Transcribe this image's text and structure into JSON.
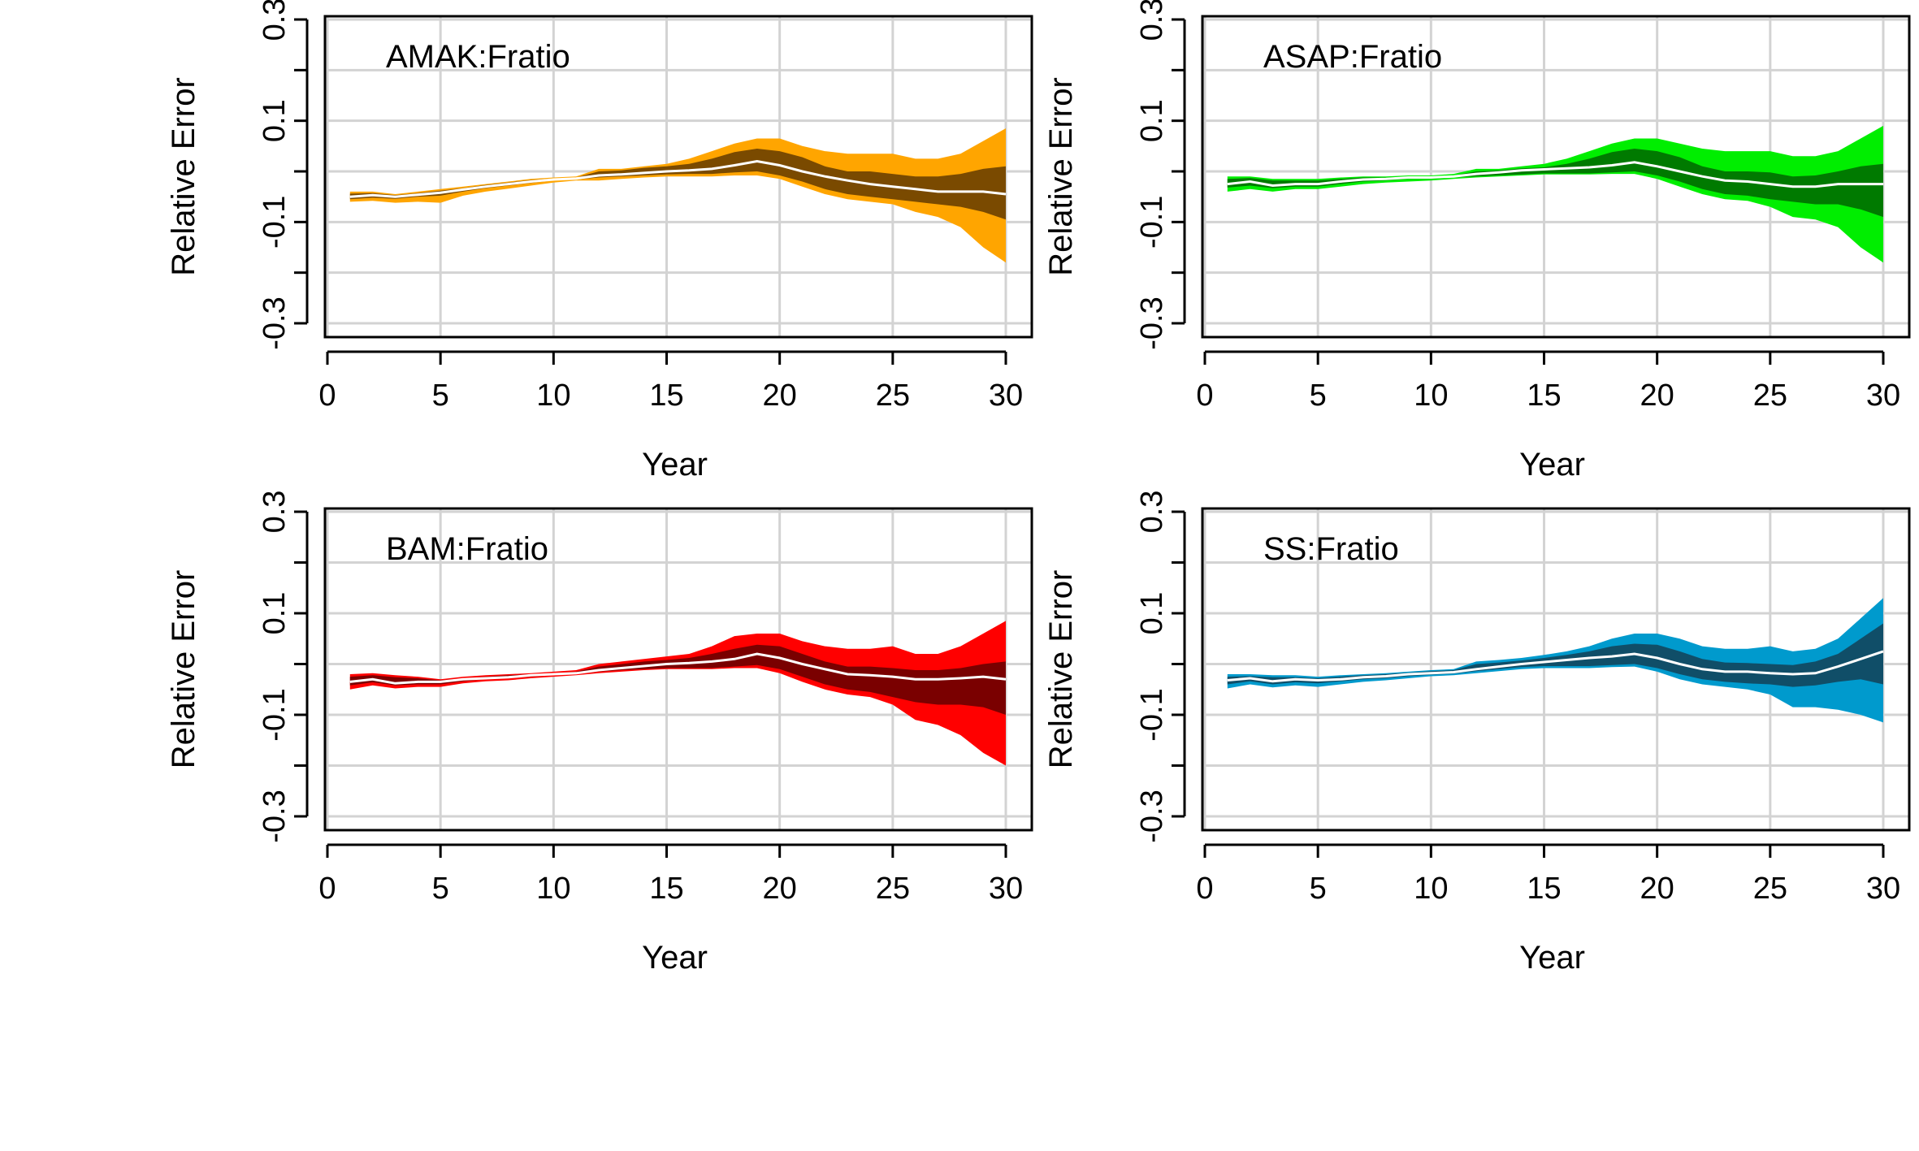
{
  "chart_data": [
    {
      "type": "area",
      "title": "AMAK:Fratio",
      "xlabel": "Year",
      "ylabel": "Relative Error",
      "xlim": [
        0,
        30
      ],
      "ylim": [
        -0.3,
        0.3
      ],
      "xticks": [
        "0",
        "5",
        "10",
        "15",
        "20",
        "25",
        "30"
      ],
      "yticks": [
        "-0.3",
        "-0.1",
        "0.1",
        "0.3"
      ],
      "grid": true,
      "colors": {
        "outer": "#FFA500",
        "inner": "#7A4A00",
        "median": "#FFFFFF"
      },
      "x": [
        1,
        2,
        3,
        4,
        5,
        6,
        7,
        8,
        9,
        10,
        11,
        12,
        13,
        14,
        15,
        16,
        17,
        18,
        19,
        20,
        21,
        22,
        23,
        24,
        25,
        26,
        27,
        28,
        29,
        30
      ],
      "series": [
        {
          "role": "outer_upper",
          "values": [
            -0.04,
            -0.04,
            -0.045,
            -0.04,
            -0.035,
            -0.03,
            -0.025,
            -0.02,
            -0.015,
            -0.012,
            -0.01,
            0.005,
            0.005,
            0.01,
            0.015,
            0.025,
            0.04,
            0.055,
            0.065,
            0.065,
            0.05,
            0.04,
            0.035,
            0.035,
            0.035,
            0.025,
            0.025,
            0.035,
            0.06,
            0.085
          ]
        },
        {
          "role": "inner_upper",
          "values": [
            -0.044,
            -0.043,
            -0.047,
            -0.043,
            -0.038,
            -0.033,
            -0.027,
            -0.022,
            -0.017,
            -0.014,
            -0.012,
            0.0,
            0.002,
            0.007,
            0.01,
            0.015,
            0.025,
            0.038,
            0.045,
            0.04,
            0.028,
            0.01,
            0.0,
            0.0,
            -0.005,
            -0.01,
            -0.01,
            -0.005,
            0.005,
            0.01
          ]
        },
        {
          "role": "median",
          "values": [
            -0.05,
            -0.047,
            -0.05,
            -0.046,
            -0.042,
            -0.036,
            -0.03,
            -0.025,
            -0.02,
            -0.016,
            -0.014,
            -0.008,
            -0.006,
            -0.003,
            0.0,
            0.002,
            0.005,
            0.012,
            0.02,
            0.012,
            0.0,
            -0.01,
            -0.018,
            -0.025,
            -0.03,
            -0.035,
            -0.04,
            -0.04,
            -0.04,
            -0.045
          ]
        },
        {
          "role": "inner_lower",
          "values": [
            -0.055,
            -0.052,
            -0.054,
            -0.05,
            -0.048,
            -0.04,
            -0.033,
            -0.028,
            -0.023,
            -0.018,
            -0.016,
            -0.012,
            -0.01,
            -0.008,
            -0.006,
            -0.005,
            -0.005,
            -0.002,
            0.0,
            -0.008,
            -0.02,
            -0.035,
            -0.045,
            -0.05,
            -0.055,
            -0.06,
            -0.065,
            -0.07,
            -0.08,
            -0.095
          ]
        },
        {
          "role": "outer_lower",
          "values": [
            -0.06,
            -0.058,
            -0.062,
            -0.06,
            -0.062,
            -0.048,
            -0.04,
            -0.034,
            -0.028,
            -0.022,
            -0.018,
            -0.018,
            -0.015,
            -0.012,
            -0.01,
            -0.01,
            -0.01,
            -0.008,
            -0.008,
            -0.015,
            -0.03,
            -0.045,
            -0.055,
            -0.06,
            -0.065,
            -0.08,
            -0.09,
            -0.11,
            -0.15,
            -0.18
          ]
        }
      ]
    },
    {
      "type": "area",
      "title": "ASAP:Fratio",
      "xlabel": "Year",
      "ylabel": "Relative Error",
      "xlim": [
        0,
        30
      ],
      "ylim": [
        -0.3,
        0.3
      ],
      "xticks": [
        "0",
        "5",
        "10",
        "15",
        "20",
        "25",
        "30"
      ],
      "yticks": [
        "-0.3",
        "-0.1",
        "0.1",
        "0.3"
      ],
      "grid": true,
      "colors": {
        "outer": "#00EE00",
        "inner": "#007A00",
        "median": "#FFFFFF"
      },
      "x": [
        1,
        2,
        3,
        4,
        5,
        6,
        7,
        8,
        9,
        10,
        11,
        12,
        13,
        14,
        15,
        16,
        17,
        18,
        19,
        20,
        21,
        22,
        23,
        24,
        25,
        26,
        27,
        28,
        29,
        30
      ],
      "series": [
        {
          "role": "outer_upper",
          "values": [
            -0.01,
            -0.01,
            -0.015,
            -0.015,
            -0.015,
            -0.012,
            -0.01,
            -0.01,
            -0.008,
            -0.008,
            -0.005,
            0.005,
            0.005,
            0.01,
            0.015,
            0.025,
            0.04,
            0.055,
            0.065,
            0.065,
            0.055,
            0.045,
            0.04,
            0.04,
            0.04,
            0.03,
            0.03,
            0.04,
            0.065,
            0.09
          ]
        },
        {
          "role": "inner_upper",
          "values": [
            -0.015,
            -0.013,
            -0.018,
            -0.018,
            -0.018,
            -0.015,
            -0.012,
            -0.012,
            -0.01,
            -0.01,
            -0.008,
            0.0,
            0.002,
            0.006,
            0.008,
            0.015,
            0.025,
            0.038,
            0.045,
            0.04,
            0.028,
            0.01,
            0.0,
            0.0,
            -0.002,
            -0.01,
            -0.008,
            0.0,
            0.01,
            0.015
          ]
        },
        {
          "role": "median",
          "values": [
            -0.025,
            -0.02,
            -0.028,
            -0.025,
            -0.025,
            -0.02,
            -0.016,
            -0.015,
            -0.012,
            -0.012,
            -0.01,
            -0.005,
            -0.002,
            0.002,
            0.004,
            0.006,
            0.008,
            0.012,
            0.018,
            0.01,
            0.0,
            -0.01,
            -0.018,
            -0.02,
            -0.025,
            -0.03,
            -0.03,
            -0.025,
            -0.025,
            -0.025
          ]
        },
        {
          "role": "inner_lower",
          "values": [
            -0.032,
            -0.028,
            -0.033,
            -0.03,
            -0.03,
            -0.025,
            -0.02,
            -0.018,
            -0.015,
            -0.015,
            -0.012,
            -0.01,
            -0.008,
            -0.006,
            -0.004,
            -0.004,
            -0.004,
            -0.002,
            0.0,
            -0.008,
            -0.02,
            -0.035,
            -0.045,
            -0.048,
            -0.055,
            -0.06,
            -0.065,
            -0.065,
            -0.075,
            -0.09
          ]
        },
        {
          "role": "outer_lower",
          "values": [
            -0.04,
            -0.035,
            -0.04,
            -0.035,
            -0.035,
            -0.03,
            -0.025,
            -0.022,
            -0.02,
            -0.018,
            -0.015,
            -0.012,
            -0.01,
            -0.008,
            -0.006,
            -0.006,
            -0.006,
            -0.005,
            -0.005,
            -0.015,
            -0.03,
            -0.045,
            -0.055,
            -0.058,
            -0.07,
            -0.09,
            -0.095,
            -0.11,
            -0.15,
            -0.18
          ]
        }
      ]
    },
    {
      "type": "area",
      "title": "BAM:Fratio",
      "xlabel": "Year",
      "ylabel": "Relative Error",
      "xlim": [
        0,
        30
      ],
      "ylim": [
        -0.3,
        0.3
      ],
      "xticks": [
        "0",
        "5",
        "10",
        "15",
        "20",
        "25",
        "30"
      ],
      "yticks": [
        "-0.3",
        "-0.1",
        "0.1",
        "0.3"
      ],
      "grid": true,
      "colors": {
        "outer": "#FF0000",
        "inner": "#7A0000",
        "median": "#FFFFFF"
      },
      "x": [
        1,
        2,
        3,
        4,
        5,
        6,
        7,
        8,
        9,
        10,
        11,
        12,
        13,
        14,
        15,
        16,
        17,
        18,
        19,
        20,
        21,
        22,
        23,
        24,
        25,
        26,
        27,
        28,
        29,
        30
      ],
      "series": [
        {
          "role": "outer_upper",
          "values": [
            -0.02,
            -0.018,
            -0.022,
            -0.025,
            -0.03,
            -0.025,
            -0.022,
            -0.02,
            -0.018,
            -0.015,
            -0.012,
            0.0,
            0.005,
            0.01,
            0.015,
            0.02,
            0.035,
            0.055,
            0.06,
            0.06,
            0.045,
            0.035,
            0.03,
            0.03,
            0.035,
            0.02,
            0.02,
            0.035,
            0.06,
            0.085
          ]
        },
        {
          "role": "inner_upper",
          "values": [
            -0.025,
            -0.022,
            -0.026,
            -0.028,
            -0.032,
            -0.028,
            -0.025,
            -0.022,
            -0.02,
            -0.018,
            -0.015,
            -0.005,
            0.0,
            0.005,
            0.008,
            0.012,
            0.02,
            0.03,
            0.038,
            0.035,
            0.02,
            0.005,
            -0.005,
            -0.005,
            -0.008,
            -0.012,
            -0.012,
            -0.008,
            0.0,
            0.005
          ]
        },
        {
          "role": "median",
          "values": [
            -0.035,
            -0.03,
            -0.038,
            -0.035,
            -0.035,
            -0.03,
            -0.028,
            -0.026,
            -0.022,
            -0.02,
            -0.018,
            -0.012,
            -0.008,
            -0.004,
            0.0,
            0.002,
            0.005,
            0.01,
            0.02,
            0.012,
            0.0,
            -0.01,
            -0.02,
            -0.022,
            -0.025,
            -0.03,
            -0.03,
            -0.028,
            -0.025,
            -0.03
          ]
        },
        {
          "role": "inner_lower",
          "values": [
            -0.042,
            -0.036,
            -0.042,
            -0.04,
            -0.04,
            -0.034,
            -0.03,
            -0.028,
            -0.025,
            -0.022,
            -0.02,
            -0.015,
            -0.012,
            -0.01,
            -0.008,
            -0.008,
            -0.008,
            -0.005,
            -0.002,
            -0.01,
            -0.025,
            -0.04,
            -0.05,
            -0.055,
            -0.065,
            -0.075,
            -0.08,
            -0.08,
            -0.085,
            -0.1
          ]
        },
        {
          "role": "outer_lower",
          "values": [
            -0.05,
            -0.042,
            -0.048,
            -0.045,
            -0.045,
            -0.038,
            -0.034,
            -0.032,
            -0.028,
            -0.025,
            -0.022,
            -0.018,
            -0.015,
            -0.012,
            -0.01,
            -0.01,
            -0.01,
            -0.008,
            -0.008,
            -0.018,
            -0.035,
            -0.05,
            -0.06,
            -0.065,
            -0.08,
            -0.11,
            -0.12,
            -0.14,
            -0.175,
            -0.2
          ]
        }
      ]
    },
    {
      "type": "area",
      "title": "SS:Fratio",
      "xlabel": "Year",
      "ylabel": "Relative Error",
      "xlim": [
        0,
        30
      ],
      "ylim": [
        -0.3,
        0.3
      ],
      "xticks": [
        "0",
        "5",
        "10",
        "15",
        "20",
        "25",
        "30"
      ],
      "yticks": [
        "-0.3",
        "-0.1",
        "0.1",
        "0.3"
      ],
      "grid": true,
      "colors": {
        "outer": "#009ACD",
        "inner": "#104E68",
        "median": "#FFFFFF"
      },
      "x": [
        1,
        2,
        3,
        4,
        5,
        6,
        7,
        8,
        9,
        10,
        11,
        12,
        13,
        14,
        15,
        16,
        17,
        18,
        19,
        20,
        21,
        22,
        23,
        24,
        25,
        26,
        27,
        28,
        29,
        30
      ],
      "series": [
        {
          "role": "outer_upper",
          "values": [
            -0.02,
            -0.02,
            -0.022,
            -0.022,
            -0.025,
            -0.022,
            -0.02,
            -0.018,
            -0.015,
            -0.012,
            -0.01,
            0.005,
            0.008,
            0.012,
            0.018,
            0.025,
            0.035,
            0.05,
            0.06,
            0.06,
            0.05,
            0.035,
            0.03,
            0.03,
            0.035,
            0.025,
            0.03,
            0.05,
            0.09,
            0.13
          ]
        },
        {
          "role": "inner_upper",
          "values": [
            -0.025,
            -0.024,
            -0.026,
            -0.026,
            -0.028,
            -0.025,
            -0.022,
            -0.02,
            -0.017,
            -0.014,
            -0.012,
            0.0,
            0.003,
            0.007,
            0.012,
            0.018,
            0.025,
            0.035,
            0.04,
            0.038,
            0.025,
            0.01,
            0.003,
            0.002,
            0.0,
            -0.002,
            0.005,
            0.02,
            0.05,
            0.08
          ]
        },
        {
          "role": "median",
          "values": [
            -0.032,
            -0.028,
            -0.034,
            -0.03,
            -0.032,
            -0.03,
            -0.026,
            -0.024,
            -0.02,
            -0.018,
            -0.016,
            -0.01,
            -0.005,
            0.0,
            0.004,
            0.008,
            0.012,
            0.015,
            0.02,
            0.012,
            0.0,
            -0.01,
            -0.015,
            -0.015,
            -0.018,
            -0.02,
            -0.018,
            -0.005,
            0.01,
            0.025
          ]
        },
        {
          "role": "inner_lower",
          "values": [
            -0.04,
            -0.034,
            -0.04,
            -0.036,
            -0.038,
            -0.034,
            -0.03,
            -0.028,
            -0.024,
            -0.021,
            -0.019,
            -0.014,
            -0.01,
            -0.006,
            -0.004,
            -0.004,
            -0.004,
            -0.002,
            0.0,
            -0.008,
            -0.02,
            -0.03,
            -0.035,
            -0.038,
            -0.04,
            -0.045,
            -0.042,
            -0.035,
            -0.03,
            -0.04
          ]
        },
        {
          "role": "outer_lower",
          "values": [
            -0.048,
            -0.04,
            -0.046,
            -0.042,
            -0.045,
            -0.04,
            -0.035,
            -0.032,
            -0.028,
            -0.024,
            -0.022,
            -0.018,
            -0.014,
            -0.01,
            -0.008,
            -0.008,
            -0.008,
            -0.006,
            -0.005,
            -0.015,
            -0.03,
            -0.04,
            -0.045,
            -0.05,
            -0.06,
            -0.085,
            -0.085,
            -0.09,
            -0.1,
            -0.115
          ]
        }
      ]
    }
  ]
}
